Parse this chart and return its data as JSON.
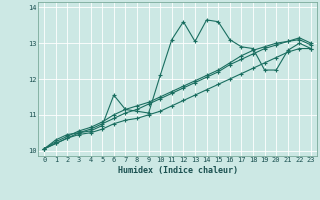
{
  "xlabel": "Humidex (Indice chaleur)",
  "bg_color": "#cce8e4",
  "line_color": "#1a6e60",
  "grid_color": "#b0d8d0",
  "xlim": [
    -0.5,
    23.5
  ],
  "ylim": [
    9.85,
    14.15
  ],
  "yticks": [
    10,
    11,
    12,
    13,
    14
  ],
  "xticks": [
    0,
    1,
    2,
    3,
    4,
    5,
    6,
    7,
    8,
    9,
    10,
    11,
    12,
    13,
    14,
    15,
    16,
    17,
    18,
    19,
    20,
    21,
    22,
    23
  ],
  "series": [
    [
      10.05,
      10.3,
      10.45,
      10.5,
      10.55,
      10.7,
      11.55,
      11.15,
      11.1,
      11.05,
      12.1,
      13.1,
      13.6,
      13.05,
      13.65,
      13.6,
      13.1,
      12.9,
      12.85,
      12.25,
      12.25,
      12.8,
      13.0,
      12.85
    ],
    [
      10.05,
      10.2,
      10.35,
      10.45,
      10.5,
      10.6,
      10.75,
      10.85,
      10.9,
      11.0,
      11.1,
      11.25,
      11.4,
      11.55,
      11.7,
      11.85,
      12.0,
      12.15,
      12.3,
      12.45,
      12.6,
      12.75,
      12.85,
      12.85
    ],
    [
      10.05,
      10.2,
      10.35,
      10.5,
      10.6,
      10.75,
      10.9,
      11.05,
      11.15,
      11.3,
      11.45,
      11.6,
      11.75,
      11.9,
      12.05,
      12.2,
      12.4,
      12.55,
      12.7,
      12.85,
      12.95,
      13.05,
      13.1,
      12.95
    ],
    [
      10.05,
      10.25,
      10.4,
      10.55,
      10.65,
      10.8,
      11.0,
      11.15,
      11.25,
      11.35,
      11.5,
      11.65,
      11.8,
      11.95,
      12.1,
      12.25,
      12.45,
      12.65,
      12.8,
      12.9,
      13.0,
      13.05,
      13.15,
      13.0
    ]
  ]
}
